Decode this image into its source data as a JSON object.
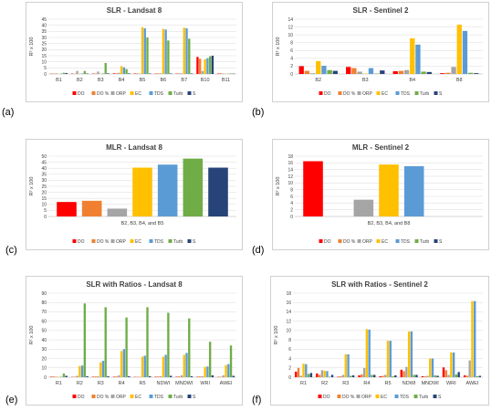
{
  "colors": {
    "DO": "#ff0000",
    "DO %": "#f08030",
    "ORP": "#a5a5a5",
    "EC": "#ffc000",
    "TDS": "#5b9bd5",
    "Turb": "#70ad47",
    "S": "#264478",
    "grid": "#d9d9d9",
    "axis": "#bfbfbf",
    "text": "#404040"
  },
  "chart_data": [
    {
      "panel": "(a)",
      "type": "bar",
      "title": "SLR - Landsat 8",
      "ylabel": "R² x 100",
      "xlabel": "",
      "ylim": [
        0,
        45
      ],
      "yticks": [
        0,
        5,
        10,
        15,
        20,
        25,
        30,
        35,
        40,
        45
      ],
      "categories": [
        "B1",
        "B2",
        "B3",
        "B4",
        "B5",
        "B6",
        "B7",
        "B10",
        "B11"
      ],
      "series": [
        {
          "name": "DO",
          "values": [
            0.2,
            0.3,
            0.3,
            0.5,
            0.4,
            0.3,
            0.3,
            14.0,
            0.4
          ]
        },
        {
          "name": "DO %",
          "values": [
            0.3,
            0.2,
            0.4,
            0.6,
            0.5,
            0.5,
            0.5,
            12.5,
            0.6
          ]
        },
        {
          "name": "ORP",
          "values": [
            0.5,
            2.5,
            2.0,
            1.0,
            0.3,
            0.5,
            0.5,
            2.5,
            0.3
          ]
        },
        {
          "name": "EC",
          "values": [
            0.2,
            0.3,
            0.3,
            6.5,
            38.5,
            37.0,
            38.0,
            12.0,
            0.2
          ]
        },
        {
          "name": "TDS",
          "values": [
            0.3,
            0.4,
            0.4,
            5.5,
            37.5,
            36.5,
            37.5,
            13.0,
            0.2
          ]
        },
        {
          "name": "Turb",
          "values": [
            1.0,
            2.5,
            9.0,
            4.0,
            30.0,
            27.5,
            29.0,
            14.5,
            0.4
          ]
        },
        {
          "name": "S",
          "values": [
            0.8,
            0.4,
            0.5,
            0.5,
            0.4,
            0.4,
            0.4,
            15.0,
            0.3
          ]
        }
      ],
      "legend": "bottom"
    },
    {
      "panel": "(b)",
      "type": "bar",
      "title": "SLR - Sentinel 2",
      "ylabel": "R² x 100",
      "xlabel": "",
      "ylim": [
        0,
        14
      ],
      "yticks": [
        0,
        2,
        4,
        6,
        8,
        10,
        12,
        14
      ],
      "categories": [
        "B2",
        "B3",
        "B4",
        "B8"
      ],
      "series": [
        {
          "name": "DO",
          "values": [
            2.0,
            1.8,
            0.7,
            0.2
          ]
        },
        {
          "name": "DO %",
          "values": [
            0.8,
            1.5,
            0.8,
            0.3
          ]
        },
        {
          "name": "ORP",
          "values": [
            0.2,
            0.6,
            1.0,
            1.8
          ]
        },
        {
          "name": "EC",
          "values": [
            3.3,
            0.1,
            9.1,
            12.6
          ]
        },
        {
          "name": "TDS",
          "values": [
            2.1,
            1.5,
            7.5,
            11.0
          ]
        },
        {
          "name": "Turb",
          "values": [
            1.0,
            0.1,
            0.6,
            0.3
          ]
        },
        {
          "name": "S",
          "values": [
            0.8,
            0.9,
            0.5,
            0.2
          ]
        }
      ],
      "legend": "bottom"
    },
    {
      "panel": "(c)",
      "type": "bar",
      "title": "MLR - Landsat 8",
      "ylabel": "R² x 100",
      "xlabel": "B2, B3, B4, and B5",
      "ylim": [
        0,
        50
      ],
      "yticks": [
        0,
        5,
        10,
        15,
        20,
        25,
        30,
        35,
        40,
        45,
        50
      ],
      "categories": [
        ""
      ],
      "series": [
        {
          "name": "DO",
          "values": [
            12.0
          ]
        },
        {
          "name": "DO %",
          "values": [
            13.0
          ]
        },
        {
          "name": "ORP",
          "values": [
            6.5
          ]
        },
        {
          "name": "EC",
          "values": [
            40.5
          ]
        },
        {
          "name": "TDS",
          "values": [
            43.0
          ]
        },
        {
          "name": "Turb",
          "values": [
            48.0
          ]
        },
        {
          "name": "S",
          "values": [
            40.5
          ]
        }
      ],
      "legend": "bottom"
    },
    {
      "panel": "(d)",
      "type": "bar",
      "title": "MLR - Sentinel 2",
      "ylabel": "R² x 100",
      "xlabel": "B2, B3, B4, and B8",
      "ylim": [
        0,
        18
      ],
      "yticks": [
        0,
        2,
        4,
        6,
        8,
        10,
        12,
        14,
        16,
        18
      ],
      "categories": [
        ""
      ],
      "series": [
        {
          "name": "DO",
          "values": [
            16.5
          ]
        },
        {
          "name": "DO %",
          "values": [
            0
          ]
        },
        {
          "name": "ORP",
          "values": [
            5.0
          ]
        },
        {
          "name": "EC",
          "values": [
            15.5
          ]
        },
        {
          "name": "TDS",
          "values": [
            15.0
          ]
        },
        {
          "name": "Turb",
          "values": [
            0
          ]
        },
        {
          "name": "S",
          "values": [
            0
          ]
        }
      ],
      "legend": "bottom"
    },
    {
      "panel": "(e)",
      "type": "bar",
      "title": "SLR with Ratios - Landsat 8",
      "ylabel": "R² x 100",
      "xlabel": "",
      "ylim": [
        0,
        90
      ],
      "yticks": [
        0,
        10,
        20,
        30,
        40,
        50,
        60,
        70,
        80,
        90
      ],
      "categories": [
        "R1",
        "R2",
        "R3",
        "R4",
        "R5",
        "NDWI",
        "MNDWI",
        "WRI",
        "AWEI"
      ],
      "series": [
        {
          "name": "DO",
          "values": [
            0.5,
            0.3,
            0.5,
            0.5,
            0.3,
            0.5,
            0.5,
            0.5,
            0.3
          ]
        },
        {
          "name": "DO %",
          "values": [
            0.8,
            0.5,
            0.8,
            0.8,
            0.5,
            0.8,
            0.8,
            0.8,
            0.5
          ]
        },
        {
          "name": "ORP",
          "values": [
            0.5,
            1.5,
            1.0,
            2.0,
            0.5,
            1.0,
            2.0,
            1.0,
            2.0
          ]
        },
        {
          "name": "EC",
          "values": [
            0.5,
            12.0,
            16.0,
            28.0,
            22.0,
            22.0,
            24.0,
            11.0,
            13.0
          ]
        },
        {
          "name": "TDS",
          "values": [
            0.5,
            12.5,
            17.5,
            30.0,
            23.0,
            24.0,
            26.0,
            11.5,
            14.0
          ]
        },
        {
          "name": "Turb",
          "values": [
            4.0,
            79.0,
            75.0,
            64.0,
            75.0,
            69.0,
            63.0,
            38.0,
            34.0
          ]
        },
        {
          "name": "S",
          "values": [
            1.5,
            1.0,
            1.0,
            1.0,
            1.0,
            1.5,
            1.0,
            2.0,
            1.5
          ]
        }
      ],
      "legend": "bottom"
    },
    {
      "panel": "(f)",
      "type": "bar",
      "title": "SLR with Ratios - Sentinel 2",
      "ylabel": "R² x 100",
      "xlabel": "",
      "ylim": [
        0,
        18
      ],
      "yticks": [
        0,
        2,
        4,
        6,
        8,
        10,
        12,
        14,
        16,
        18
      ],
      "categories": [
        "R1",
        "R2",
        "R3",
        "R4",
        "R5",
        "NDWI",
        "MNDWI",
        "WRI",
        "AWEI"
      ],
      "series": [
        {
          "name": "DO",
          "values": [
            1.2,
            0.8,
            0.1,
            0.4,
            0.2,
            1.6,
            0.2,
            2.1,
            0.4
          ]
        },
        {
          "name": "DO %",
          "values": [
            2.0,
            0.5,
            0.2,
            0.6,
            0.3,
            1.3,
            0.2,
            1.5,
            0.3
          ]
        },
        {
          "name": "ORP",
          "values": [
            0.3,
            1.5,
            0.5,
            2.0,
            0.5,
            2.2,
            0.3,
            0.5,
            3.6
          ]
        },
        {
          "name": "EC",
          "values": [
            2.9,
            1.4,
            4.9,
            10.3,
            7.8,
            9.8,
            4.0,
            5.3,
            16.3
          ]
        },
        {
          "name": "TDS",
          "values": [
            2.8,
            1.3,
            4.9,
            10.2,
            7.8,
            9.8,
            4.0,
            5.3,
            16.3
          ]
        },
        {
          "name": "Turb",
          "values": [
            0.7,
            0.1,
            0.3,
            0.5,
            0.2,
            0.5,
            0.4,
            0.6,
            0.2
          ]
        },
        {
          "name": "S",
          "values": [
            0.9,
            0.5,
            0.4,
            0.5,
            0.4,
            0.5,
            0.3,
            1.1,
            0.3
          ]
        }
      ],
      "legend": "bottom"
    }
  ]
}
